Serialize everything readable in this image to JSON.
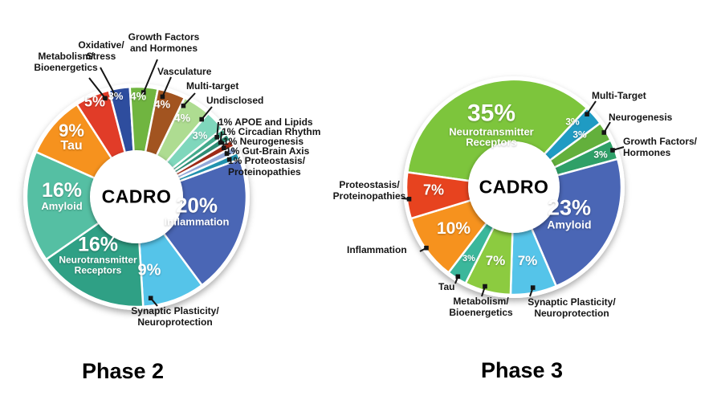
{
  "figure": {
    "background": "#FFFFFF",
    "callout_line_color": "#151515",
    "percent_text_color": "#FFFFFF"
  },
  "chart_data": [
    {
      "type": "pie",
      "title": "Phase 2",
      "center_label": "CADRO",
      "unit": "% of agents",
      "legend": "none",
      "slices": [
        {
          "label": "Inflammation",
          "value": 20,
          "pct_label": "20%",
          "color": "#4A66B5",
          "inside_text": "Inflammation"
        },
        {
          "label": "Synaptic Plasticity/Neuroprotection",
          "value": 9,
          "pct_label": "9%",
          "color": "#55C4E9",
          "callout": "Synaptic Plasticity/\nNeuroprotection"
        },
        {
          "label": "Neurotransmitter Receptors",
          "value": 16,
          "pct_label": "16%",
          "color": "#2FA085",
          "inside_text": "Neurotransmitter\nReceptors"
        },
        {
          "label": "Amyloid",
          "value": 16,
          "pct_label": "16%",
          "color": "#55BFA3",
          "inside_text": "Amyloid"
        },
        {
          "label": "Tau",
          "value": 9,
          "pct_label": "9%",
          "color": "#F6921E",
          "inside_text": "Tau"
        },
        {
          "label": "Metabolism/Bioenergetics",
          "value": 5,
          "pct_label": "5%",
          "color": "#E13C28",
          "callout": "Metabolism/\nBioenergetics"
        },
        {
          "label": "Oxidative Stress",
          "value": 3,
          "pct_label": "3%",
          "color": "#2E4D9E",
          "callout": "Oxidative/\nStress"
        },
        {
          "label": "Growth Factors and Hormones",
          "value": 4,
          "pct_label": "4%",
          "color": "#70B540",
          "callout": "Growth Factors\nand Hormones"
        },
        {
          "label": "Vasculature",
          "value": 4,
          "pct_label": "4%",
          "color": "#A25420",
          "callout": "Vasculature"
        },
        {
          "label": "Multi-target",
          "value": 4,
          "pct_label": "4%",
          "color": "#AEDC91",
          "callout": "Multi-target"
        },
        {
          "label": "Undisclosed",
          "value": 3,
          "pct_label": "3%",
          "color": "#7FD7BC",
          "callout": "Undisclosed"
        },
        {
          "label": "APOE and Lipids",
          "value": 1,
          "pct_label": "1%",
          "color": "#43AA8B",
          "callout": "1% APOE and Lipids"
        },
        {
          "label": "Circadian Rhythm",
          "value": 1,
          "pct_label": "1%",
          "color": "#2E8C74",
          "callout": "1% Circadian Rhythm"
        },
        {
          "label": "Neurogenesis",
          "value": 1,
          "pct_label": "1%",
          "color": "#9E2B17",
          "callout": "1% Neurogenesis"
        },
        {
          "label": "Gut-Brain Axis",
          "value": 1,
          "pct_label": "1%",
          "color": "#92A8D8",
          "callout": "1% Gut-Brain Axis"
        },
        {
          "label": "Proteostasis/Proteinopathies",
          "value": 1,
          "pct_label": "1%",
          "color": "#2292AE",
          "callout": "1% Proteostasis/\nProteinopathies"
        }
      ]
    },
    {
      "type": "pie",
      "title": "Phase 3",
      "center_label": "CADRO",
      "unit": "% of agents",
      "legend": "none",
      "slices": [
        {
          "label": "Neurotransmitter Receptors",
          "value": 35,
          "pct_label": "35%",
          "color": "#7DC53C",
          "inside_text": "Neurotransmitter\nReceptors"
        },
        {
          "label": "Multi-Target",
          "value": 3,
          "pct_label": "3%",
          "color": "#1F9BC3",
          "callout": "Multi-Target"
        },
        {
          "label": "Neurogenesis",
          "value": 3,
          "pct_label": "3%",
          "color": "#63B03C",
          "callout": "Neurogenesis"
        },
        {
          "label": "Growth Factors/Hormones",
          "value": 3,
          "pct_label": "3%",
          "color": "#2FA068",
          "callout": "Growth Factors/\nHormones"
        },
        {
          "label": "Amyloid",
          "value": 23,
          "pct_label": "23%",
          "color": "#4A66B5",
          "inside_text": "Amyloid"
        },
        {
          "label": "Synaptic Plasticity/Neuroprotection",
          "value": 7,
          "pct_label": "7%",
          "color": "#55C4E9",
          "callout": "Synaptic Plasticity/\nNeuroprotection"
        },
        {
          "label": "Metabolism/Bioenergetics",
          "value": 7,
          "pct_label": "7%",
          "color": "#8CCB40",
          "callout": "Metabolism/\nBioenergetics"
        },
        {
          "label": "Tau",
          "value": 3,
          "pct_label": "3%",
          "color": "#3BB79B",
          "callout": "Tau"
        },
        {
          "label": "Inflammation",
          "value": 10,
          "pct_label": "10%",
          "color": "#F6921E",
          "callout": "Inflammation"
        },
        {
          "label": "Proteostasis/Proteinopathies",
          "value": 7,
          "pct_label": "7%",
          "color": "#E7431F",
          "callout": "Proteostasis/\nProteinopathies"
        }
      ]
    }
  ]
}
